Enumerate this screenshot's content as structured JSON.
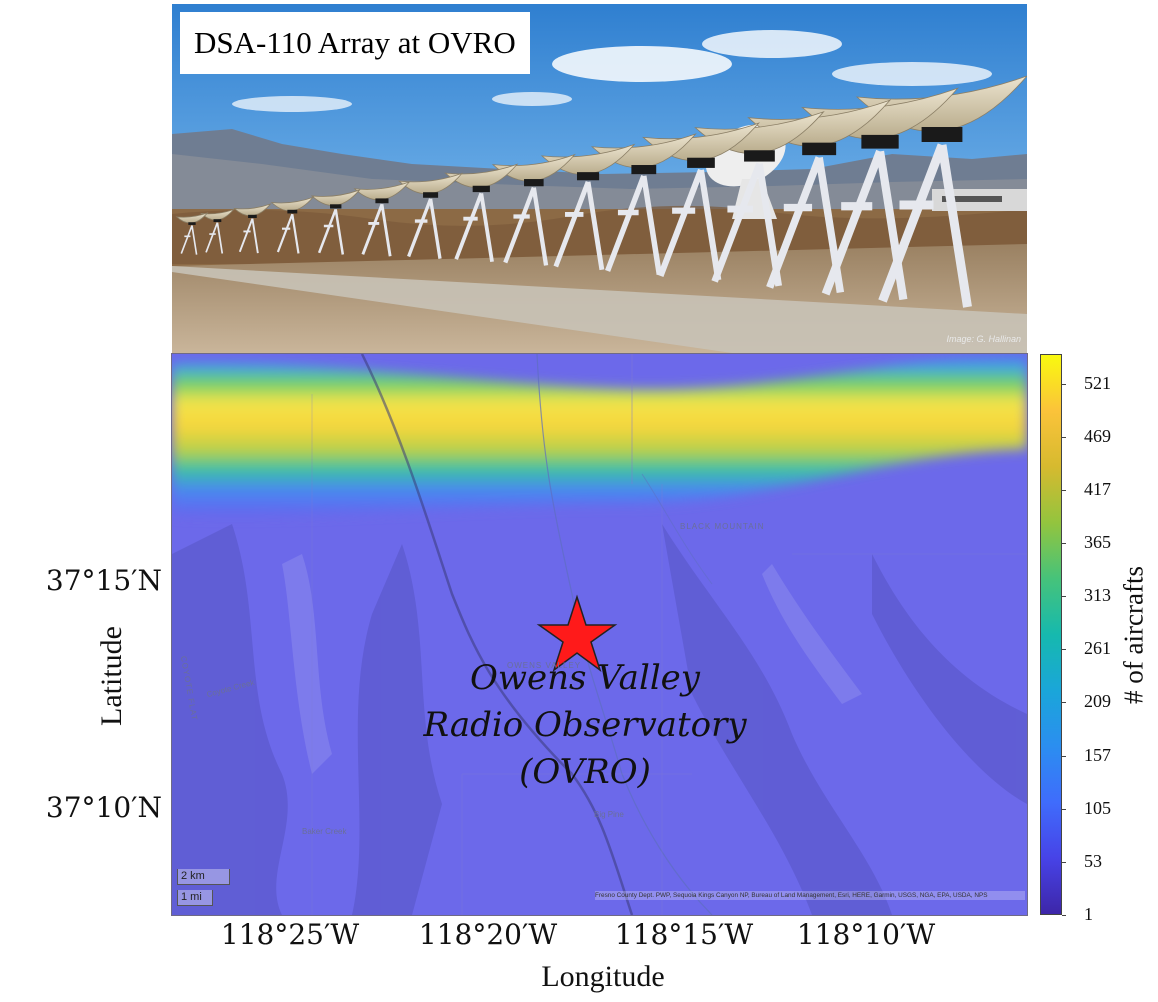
{
  "photo": {
    "title": "DSA-110 Array at OVRO",
    "credit": "Image: G. Hallinan"
  },
  "map": {
    "marker_icon": "star-icon",
    "marker_color": "#ff1a1a",
    "site_label_lines": [
      "Owens Valley",
      "Radio Observatory",
      "(OVRO)"
    ],
    "place_labels": [
      "BLACK MOUNTAIN",
      "OWENS VALLEY",
      "Big Pine",
      "COYOTE FLAT",
      "Coyote Creek",
      "Baker Creek"
    ],
    "scale_km": "2 km",
    "scale_mi": "1 mi",
    "attribution": "Fresno County Dept. PWP, Sequoia Kings Canyon NP, Bureau of Land Management, Esri, HERE, Garmin, USGS, NGA, EPA, USDA, NPS",
    "xlabel": "Longitude",
    "ylabel": "Latitude",
    "xticks": [
      "118°25′W",
      "118°20′W",
      "118°15′W",
      "118°10′W"
    ],
    "yticks": [
      "37°15′N",
      "37°10′N"
    ]
  },
  "colorbar": {
    "label": "# of aircrafts",
    "ticks": [
      "521",
      "469",
      "417",
      "365",
      "313",
      "261",
      "209",
      "157",
      "105",
      "53",
      "1"
    ],
    "min": 1,
    "max": 550,
    "colors": [
      "#3d26a8",
      "#3f6cfc",
      "#1aa6d9",
      "#46c37a",
      "#d6ba2f",
      "#f9f90f"
    ]
  }
}
